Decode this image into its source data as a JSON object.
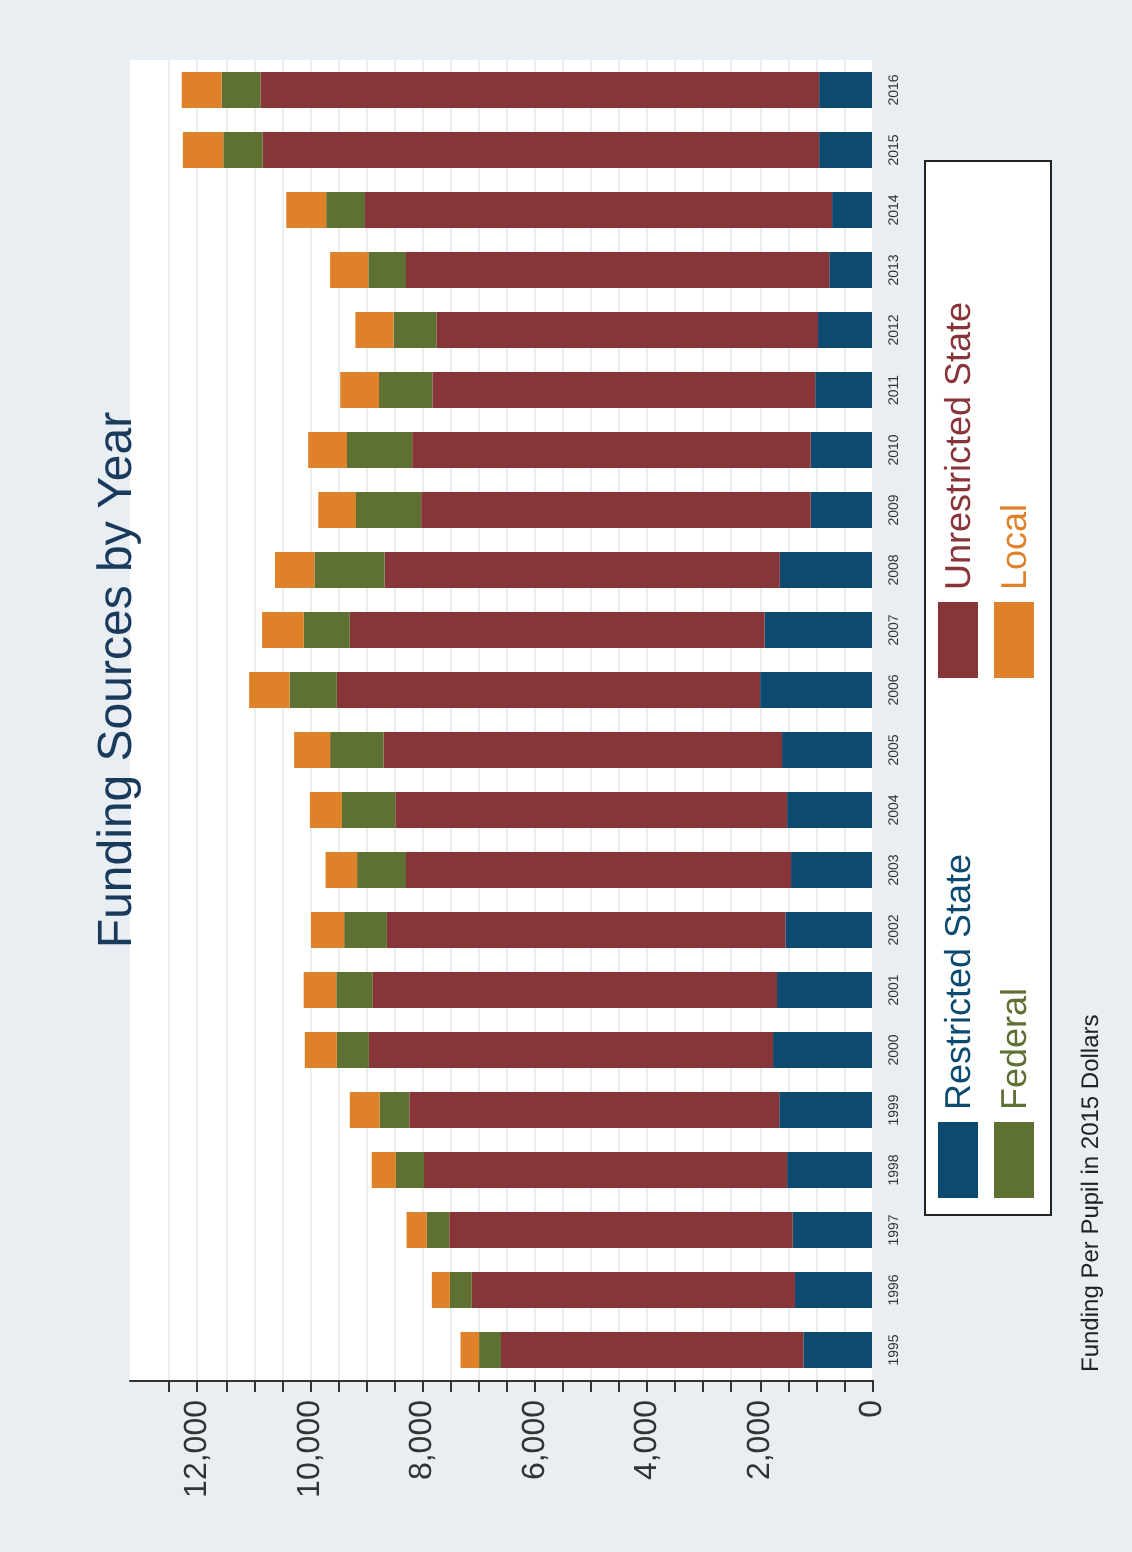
{
  "chart_data": {
    "type": "bar",
    "title": "Funding Sources by Year",
    "stacked": true,
    "orientation": "horizontal",
    "categories": [
      "2016",
      "2015",
      "2014",
      "2013",
      "2012",
      "2011",
      "2010",
      "2009",
      "2008",
      "2007",
      "2006",
      "2005",
      "2004",
      "2003",
      "2002",
      "2001",
      "2000",
      "1999",
      "1998",
      "1997",
      "1996",
      "1995"
    ],
    "series": [
      {
        "name": "Restricted State",
        "color": "#0c4a70",
        "values": [
          940,
          940,
          710,
          760,
          960,
          1010,
          1090,
          1090,
          1640,
          1910,
          1990,
          1600,
          1510,
          1440,
          1540,
          1690,
          1760,
          1650,
          1510,
          1410,
          1370,
          1220
        ]
      },
      {
        "name": "Unrestricted State",
        "color": "#883539",
        "values": [
          9940,
          9900,
          8310,
          7530,
          6790,
          6810,
          7090,
          6930,
          7030,
          7380,
          7530,
          7090,
          6970,
          6850,
          7090,
          7190,
          7190,
          6580,
          6460,
          6110,
          5750,
          5380
        ]
      },
      {
        "name": "Federal",
        "color": "#5f7132",
        "values": [
          690,
          700,
          690,
          670,
          760,
          950,
          1160,
          1160,
          1250,
          820,
          840,
          950,
          950,
          870,
          760,
          650,
          570,
          530,
          500,
          400,
          390,
          390
        ]
      },
      {
        "name": "Local",
        "color": "#de8128",
        "values": [
          710,
          720,
          710,
          680,
          680,
          690,
          690,
          670,
          700,
          740,
          720,
          640,
          570,
          560,
          590,
          580,
          570,
          530,
          430,
          360,
          320,
          330
        ]
      }
    ],
    "xlim": [
      13200,
      0
    ],
    "xticks": [
      0,
      {
        "value": 500,
        "label": null
      },
      {
        "value": 1000,
        "label": null
      },
      {
        "value": 1500,
        "label": null
      },
      {
        "value": 2000,
        "label": "2,000"
      },
      {
        "value": 2500,
        "label": null
      },
      {
        "value": 3000,
        "label": null
      },
      {
        "value": 3500,
        "label": null
      },
      {
        "value": 4000,
        "label": "4,000"
      },
      {
        "value": 4500,
        "label": null
      },
      {
        "value": 5000,
        "label": null
      },
      {
        "value": 5500,
        "label": null
      },
      {
        "value": 6000,
        "label": "6,000"
      },
      {
        "value": 6500,
        "label": null
      },
      {
        "value": 7000,
        "label": null
      },
      {
        "value": 7500,
        "label": null
      },
      {
        "value": 8000,
        "label": "8,000"
      },
      {
        "value": 8500,
        "label": null
      },
      {
        "value": 9000,
        "label": null
      },
      {
        "value": 9500,
        "label": null
      },
      {
        "value": 10000,
        "label": "10,000"
      },
      {
        "value": 10500,
        "label": null
      },
      {
        "value": 11000,
        "label": null
      },
      {
        "value": 11500,
        "label": null
      },
      {
        "value": 12000,
        "label": "12,000"
      },
      {
        "value": 12500,
        "label": null
      }
    ],
    "grid": "x",
    "legend": "right",
    "annotations": [
      "Funding Per Pupil in 2015 Dollars"
    ]
  }
}
